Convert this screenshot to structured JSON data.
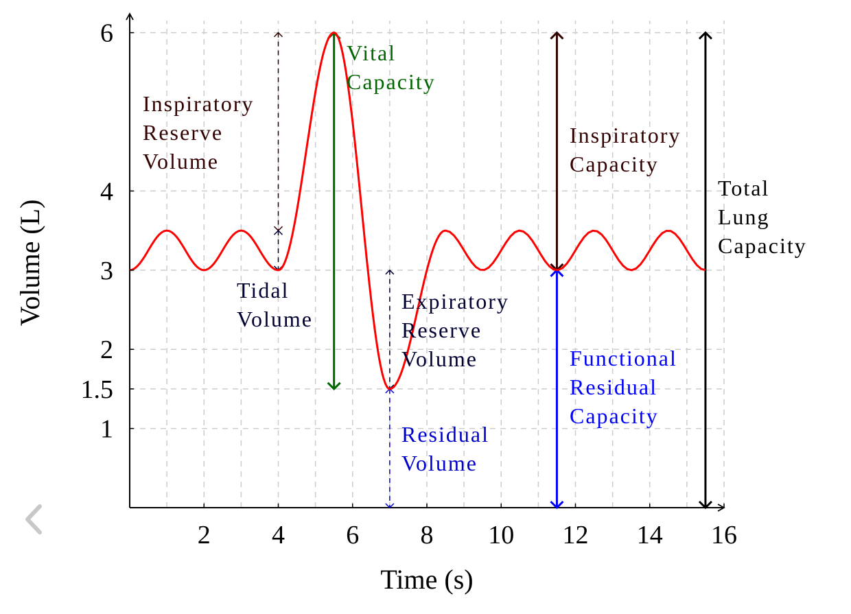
{
  "chart_data": {
    "type": "line",
    "xlabel": "Time (s)",
    "ylabel": "Volume (L)",
    "xlim": [
      0,
      16
    ],
    "ylim": [
      0,
      6.25
    ],
    "grid": true,
    "x_ticks": [
      2,
      4,
      6,
      8,
      10,
      12,
      14,
      16
    ],
    "x_tick_labels": [
      "2",
      "4",
      "6",
      "8",
      "10",
      "12",
      "14",
      "16"
    ],
    "y_ticks": [
      1,
      1.5,
      2,
      3,
      4,
      6
    ],
    "y_tick_labels": [
      "1",
      "1.5",
      "2",
      "3",
      "4",
      "6"
    ],
    "series": [
      {
        "color": "#ff0000",
        "segments": [
          {
            "shape": "sine",
            "x_start": 0,
            "x_end": 4,
            "baseline": 3,
            "amplitude": 0.5,
            "period": 2
          },
          {
            "shape": "peak",
            "x_start": 4,
            "x_end": 5.5,
            "from": 3,
            "to": 6
          },
          {
            "shape": "trough",
            "x_start": 5.5,
            "x_end": 7,
            "from": 6,
            "to": 1.5
          },
          {
            "shape": "rise",
            "x_start": 7,
            "x_end": 8.5,
            "from": 1.5,
            "to": 3.5
          },
          {
            "shape": "sine",
            "x_start": 8.5,
            "x_end": 15.5,
            "baseline": 3,
            "amplitude": 0.5,
            "period": 2,
            "phase_start": "max"
          }
        ]
      }
    ],
    "annotations": [
      {
        "lines": [
          "Inspiratory",
          "Reserve",
          "Volume"
        ],
        "color": "#330000",
        "x": 4,
        "y_from": 3.5,
        "y_to": 6,
        "style": "dashed"
      },
      {
        "lines": [
          "Tidal",
          "Volume"
        ],
        "color": "#000033",
        "x": 4,
        "y_from": 3,
        "y_to": 3.5,
        "style": "dashed"
      },
      {
        "lines": [
          "Vital",
          "Capacity"
        ],
        "color": "#006600",
        "x": 5.5,
        "y_from": 1.5,
        "y_to": 6,
        "style": "solid"
      },
      {
        "lines": [
          "Expiratory",
          "Reserve",
          "Volume"
        ],
        "color": "#000033",
        "x": 7,
        "y_from": 1.5,
        "y_to": 3,
        "style": "dashed"
      },
      {
        "lines": [
          "Residual",
          "Volume"
        ],
        "color": "#0000cc",
        "x": 7,
        "y_from": 0,
        "y_to": 1.5,
        "style": "dashed"
      },
      {
        "lines": [
          "Inspiratory",
          "Capacity"
        ],
        "color": "#330000",
        "x": 11.5,
        "y_from": 3,
        "y_to": 6,
        "style": "solid"
      },
      {
        "lines": [
          "Functional",
          "Residual",
          "Capacity"
        ],
        "color": "#0000ff",
        "x": 11.5,
        "y_from": 0,
        "y_to": 3,
        "style": "solid"
      },
      {
        "lines": [
          "Total",
          "Lung",
          "Capacity"
        ],
        "color": "#000000",
        "x": 15.5,
        "y_from": 0,
        "y_to": 6,
        "style": "solid"
      }
    ]
  },
  "ui": {
    "back_icon": "chevron-left-icon",
    "back_icon_color": "#c8c8c8"
  }
}
